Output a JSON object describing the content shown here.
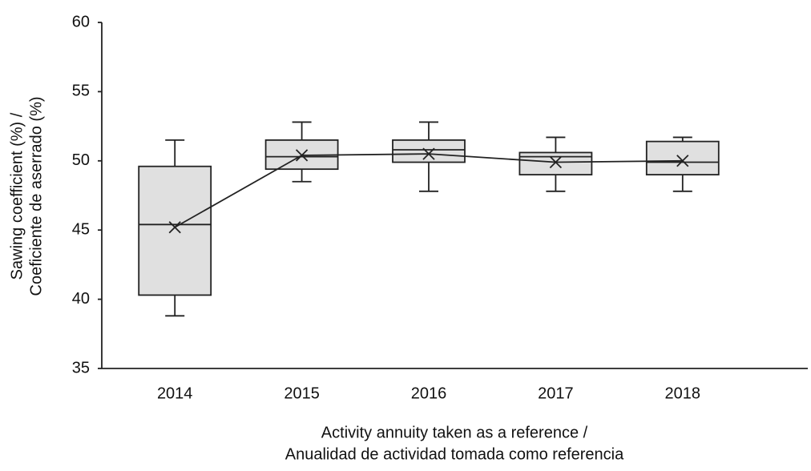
{
  "chart_data": {
    "type": "box",
    "x_label": [
      "Activity annuity taken as a reference /",
      "Anualidad de actividad tomada como referencia"
    ],
    "y_label": [
      "Sawing coefficient (%) /",
      "Coeficiente de aserrado (%)"
    ],
    "categories": [
      "2014",
      "2015",
      "2016",
      "2017",
      "2018"
    ],
    "min": [
      38.8,
      48.5,
      47.8,
      47.8,
      47.8
    ],
    "q1": [
      40.3,
      49.4,
      49.9,
      49.0,
      49.0
    ],
    "median": [
      45.4,
      50.3,
      50.8,
      50.3,
      49.9
    ],
    "q3": [
      49.6,
      51.5,
      51.5,
      50.6,
      51.4
    ],
    "max": [
      51.5,
      52.8,
      52.8,
      51.7,
      51.7
    ],
    "mean": [
      45.2,
      50.4,
      50.5,
      49.9,
      50.0
    ],
    "color": "#e0e0e0",
    "ylim": [
      35,
      60
    ],
    "yticks": [
      35,
      40,
      45,
      50,
      55,
      60
    ],
    "grid": false
  }
}
